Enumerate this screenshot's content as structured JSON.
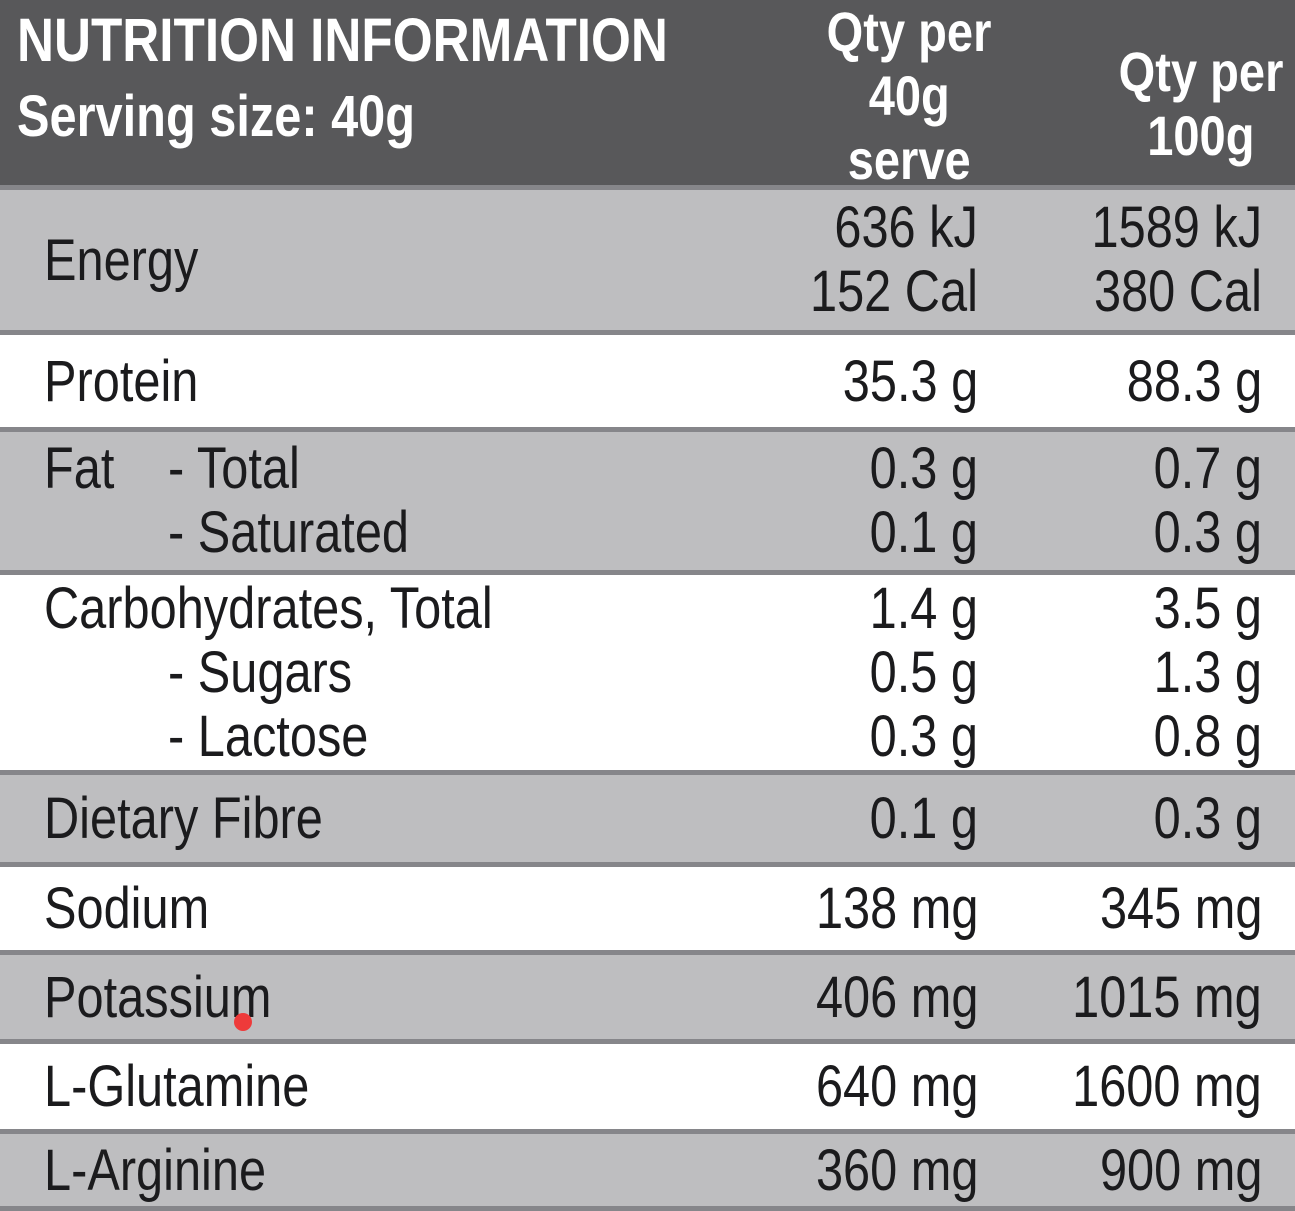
{
  "header": {
    "title": "NUTRITION INFORMATION",
    "serving_size": "Serving size: 40g"
  },
  "columns": {
    "per_serve_lines": [
      "Qty per",
      "40g",
      "serve"
    ],
    "per_100g_lines": [
      "Qty per",
      "100g"
    ]
  },
  "rows": [
    {
      "label": "Energy",
      "per_serve": [
        "636 kJ",
        "152 Cal"
      ],
      "per_100g": [
        "1589 kJ",
        "380 Cal"
      ]
    },
    {
      "label": "Protein",
      "per_serve": "35.3 g",
      "per_100g": "88.3 g"
    },
    {
      "label": "Fat",
      "sub": [
        {
          "label": "- Total",
          "per_serve": "0.3 g",
          "per_100g": "0.7 g"
        },
        {
          "label": "- Saturated",
          "per_serve": "0.1 g",
          "per_100g": "0.3 g"
        }
      ]
    },
    {
      "label": "Carbohydrates, Total",
      "per_serve": "1.4 g",
      "per_100g": "3.5 g",
      "sub": [
        {
          "label": "- Sugars",
          "per_serve": "0.5 g",
          "per_100g": "1.3 g"
        },
        {
          "label": "- Lactose",
          "per_serve": "0.3 g",
          "per_100g": "0.8 g"
        }
      ]
    },
    {
      "label": "Dietary Fibre",
      "per_serve": "0.1 g",
      "per_100g": "0.3 g"
    },
    {
      "label": "Sodium",
      "per_serve": "138 mg",
      "per_100g": "345 mg"
    },
    {
      "label": "Potassium",
      "per_serve": "406 mg",
      "per_100g": "1015 mg"
    },
    {
      "label": "L-Glutamine",
      "per_serve": "640 mg",
      "per_100g": "1600 mg"
    },
    {
      "label": "L-Arginine",
      "per_serve": "360 mg",
      "per_100g": "900 mg"
    }
  ],
  "colors": {
    "header_bg": "#58585a",
    "row_gray": "#bebec0",
    "row_white": "#ffffff",
    "separator": "#86868a",
    "text": "#1b1b1d",
    "header_text": "#ffffff",
    "accent_red": "#ee3a3a"
  }
}
